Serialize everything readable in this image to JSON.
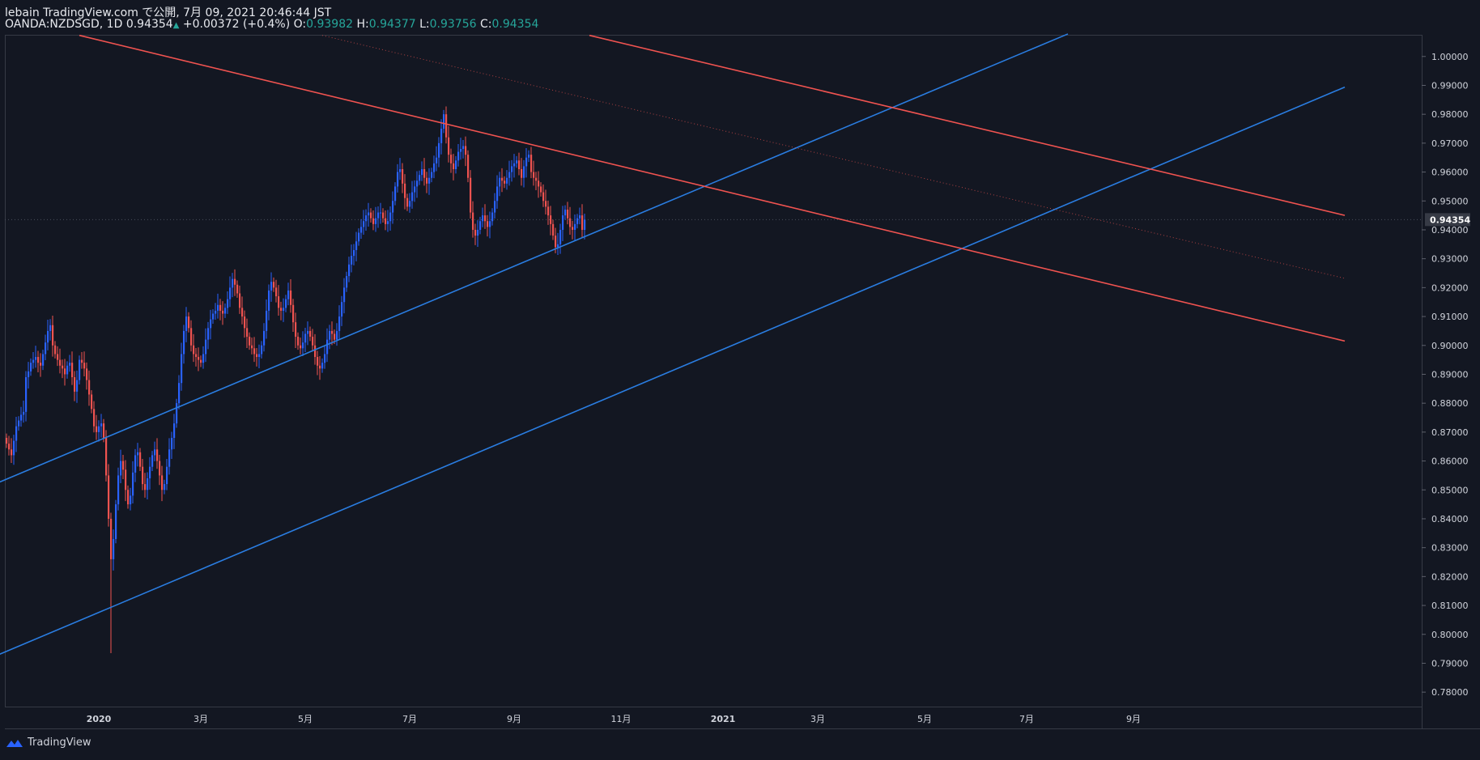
{
  "header": {
    "line1": "lebain TradingView.com で公開, 7月 09, 2021 20:46:44 JST",
    "symbol": "OANDA:NZDSGD, 1D",
    "last": "0.94354",
    "change": "+0.00372 (+0.4%)",
    "o_label": "O:",
    "o": "0.93982",
    "h_label": "H:",
    "h": "0.94377",
    "l_label": "L:",
    "l": "0.93756",
    "c_label": "C:",
    "c": "0.94354"
  },
  "footer": {
    "brand": "TradingView"
  },
  "colors": {
    "bg": "#131722",
    "up": "#2962ff",
    "down": "#f05350",
    "channel_blue": "#2a7de1",
    "channel_red": "#f05350",
    "axis_text": "#d1d4dc"
  },
  "chart_data": {
    "type": "candlestick",
    "symbol": "OANDA:NZDSGD",
    "interval": "1D",
    "ylim": [
      0.775,
      1.0075
    ],
    "y_ticks": [
      "1.00000",
      "0.99000",
      "0.98000",
      "0.97000",
      "0.96000",
      "0.95000",
      "0.94000",
      "0.93000",
      "0.92000",
      "0.91000",
      "0.90000",
      "0.89000",
      "0.88000",
      "0.87000",
      "0.86000",
      "0.85000",
      "0.84000",
      "0.83000",
      "0.82000",
      "0.81000",
      "0.80000",
      "0.79000",
      "0.78000"
    ],
    "x_ticks": [
      "2020",
      "3月",
      "5月",
      "7月",
      "9月",
      "11月",
      "2021",
      "3月",
      "5月",
      "7月",
      "9月"
    ],
    "last_price_label": "0.94354",
    "closes": [
      0.866,
      0.864,
      0.862,
      0.867,
      0.872,
      0.874,
      0.876,
      0.877,
      0.889,
      0.891,
      0.894,
      0.895,
      0.896,
      0.894,
      0.893,
      0.897,
      0.901,
      0.905,
      0.907,
      0.9,
      0.897,
      0.895,
      0.893,
      0.892,
      0.89,
      0.893,
      0.894,
      0.889,
      0.884,
      0.888,
      0.895,
      0.894,
      0.892,
      0.888,
      0.883,
      0.878,
      0.872,
      0.87,
      0.872,
      0.873,
      0.868,
      0.855,
      0.84,
      0.826,
      0.833,
      0.845,
      0.855,
      0.86,
      0.857,
      0.85,
      0.845,
      0.848,
      0.856,
      0.862,
      0.863,
      0.858,
      0.852,
      0.85,
      0.854,
      0.858,
      0.862,
      0.864,
      0.86,
      0.855,
      0.85,
      0.852,
      0.858,
      0.864,
      0.868,
      0.873,
      0.88,
      0.887,
      0.897,
      0.905,
      0.91,
      0.906,
      0.9,
      0.897,
      0.896,
      0.895,
      0.894,
      0.897,
      0.902,
      0.906,
      0.909,
      0.911,
      0.912,
      0.914,
      0.912,
      0.911,
      0.913,
      0.916,
      0.92,
      0.923,
      0.921,
      0.918,
      0.913,
      0.91,
      0.906,
      0.903,
      0.9,
      0.899,
      0.897,
      0.896,
      0.897,
      0.9,
      0.905,
      0.912,
      0.919,
      0.922,
      0.92,
      0.917,
      0.913,
      0.912,
      0.913,
      0.916,
      0.919,
      0.914,
      0.908,
      0.903,
      0.9,
      0.899,
      0.901,
      0.904,
      0.905,
      0.903,
      0.9,
      0.896,
      0.893,
      0.892,
      0.894,
      0.897,
      0.902,
      0.905,
      0.904,
      0.902,
      0.905,
      0.91,
      0.915,
      0.92,
      0.924,
      0.928,
      0.931,
      0.933,
      0.936,
      0.939,
      0.941,
      0.943,
      0.945,
      0.946,
      0.944,
      0.942,
      0.944,
      0.946,
      0.946,
      0.944,
      0.942,
      0.943,
      0.946,
      0.95,
      0.955,
      0.96,
      0.961,
      0.956,
      0.951,
      0.948,
      0.95,
      0.953,
      0.955,
      0.957,
      0.959,
      0.961,
      0.958,
      0.956,
      0.958,
      0.96,
      0.963,
      0.965,
      0.97,
      0.975,
      0.98,
      0.972,
      0.966,
      0.963,
      0.961,
      0.964,
      0.967,
      0.968,
      0.969,
      0.966,
      0.958,
      0.946,
      0.94,
      0.938,
      0.94,
      0.943,
      0.945,
      0.943,
      0.941,
      0.943,
      0.946,
      0.95,
      0.955,
      0.958,
      0.957,
      0.956,
      0.958,
      0.96,
      0.962,
      0.963,
      0.964,
      0.961,
      0.958,
      0.962,
      0.965,
      0.966,
      0.96,
      0.958,
      0.957,
      0.955,
      0.953,
      0.95,
      0.948,
      0.945,
      0.942,
      0.938,
      0.934,
      0.935,
      0.94,
      0.945,
      0.947,
      0.944,
      0.941,
      0.94,
      0.942,
      0.944,
      0.945,
      0.94,
      0.9435
    ]
  },
  "drawings": {
    "blue_channel": [
      {
        "t0": -4,
        "p0": 0.8523,
        "t1": 437,
        "p1": 1.0078
      },
      {
        "t0": -4,
        "p0": 0.7927,
        "t1": 551,
        "p1": 0.9894
      }
    ],
    "red_channel": [
      {
        "t0": 30,
        "p0": 1.0073,
        "t1": 551,
        "p1": 0.9015
      },
      {
        "t0": 240,
        "p0": 1.0073,
        "t1": 551,
        "p1": 0.945
      }
    ],
    "red_dotted_mid": {
      "t0": 130,
      "p0": 1.0073,
      "t1": 551,
      "p1": 0.9232
    }
  }
}
